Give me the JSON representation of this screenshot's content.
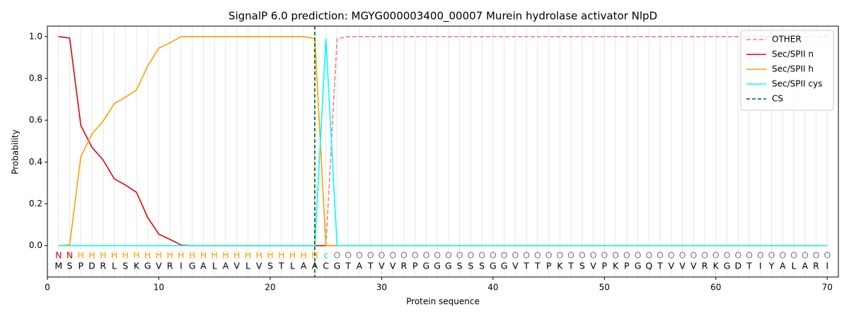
{
  "chart_data": {
    "type": "line",
    "title": "SignalP 6.0 prediction: MGYG000003400_00007 Murein hydrolase activator NlpD",
    "xlabel": "Protein sequence",
    "ylabel": "Probability",
    "x": [
      1,
      2,
      3,
      4,
      5,
      6,
      7,
      8,
      9,
      10,
      11,
      12,
      13,
      14,
      15,
      16,
      17,
      18,
      19,
      20,
      21,
      22,
      23,
      24,
      25,
      26,
      27,
      28,
      29,
      30,
      31,
      32,
      33,
      34,
      35,
      36,
      37,
      38,
      39,
      40,
      41,
      42,
      43,
      44,
      45,
      46,
      47,
      48,
      49,
      50,
      51,
      52,
      53,
      54,
      55,
      56,
      57,
      58,
      59,
      60,
      61,
      62,
      63,
      64,
      65,
      66,
      67,
      68,
      69,
      70
    ],
    "sequence": [
      "M",
      "S",
      "P",
      "D",
      "R",
      "L",
      "S",
      "K",
      "G",
      "V",
      "R",
      "I",
      "G",
      "A",
      "L",
      "A",
      "V",
      "L",
      "V",
      "S",
      "T",
      "L",
      "A",
      "A",
      "C",
      "G",
      "T",
      "A",
      "T",
      "V",
      "V",
      "R",
      "P",
      "G",
      "G",
      "G",
      "S",
      "S",
      "S",
      "G",
      "G",
      "V",
      "T",
      "T",
      "P",
      "K",
      "T",
      "S",
      "V",
      "P",
      "K",
      "P",
      "G",
      "Q",
      "T",
      "V",
      "V",
      "V",
      "R",
      "K",
      "G",
      "D",
      "T",
      "I",
      "Y",
      "A",
      "L",
      "A",
      "R",
      "I"
    ],
    "residue_labels": [
      "N",
      "N",
      "H",
      "H",
      "H",
      "H",
      "H",
      "H",
      "H",
      "H",
      "H",
      "H",
      "H",
      "H",
      "H",
      "H",
      "H",
      "H",
      "H",
      "H",
      "H",
      "H",
      "H",
      "H",
      "c",
      "O",
      "O",
      "O",
      "O",
      "O",
      "O",
      "O",
      "O",
      "O",
      "O",
      "O",
      "O",
      "O",
      "O",
      "O",
      "O",
      "O",
      "O",
      "O",
      "O",
      "O",
      "O",
      "O",
      "O",
      "O",
      "O",
      "O",
      "O",
      "O",
      "O",
      "O",
      "O",
      "O",
      "O",
      "O",
      "O",
      "O",
      "O",
      "O",
      "O",
      "O",
      "O",
      "O",
      "O",
      "O"
    ],
    "label_colors": {
      "N": "#e8000b",
      "H": "#ff9f00",
      "c": "#00e5e5",
      "O": "#808080"
    },
    "series": [
      {
        "name": "OTHER",
        "color": "#f08080",
        "dash": true,
        "values": [
          0,
          0,
          0,
          0,
          0,
          0,
          0,
          0,
          0,
          0,
          0,
          0,
          0,
          0,
          0,
          0,
          0,
          0,
          0,
          0,
          0,
          0,
          0,
          0,
          0,
          0.99,
          1,
          1,
          1,
          1,
          1,
          1,
          1,
          1,
          1,
          1,
          1,
          1,
          1,
          1,
          1,
          1,
          1,
          1,
          1,
          1,
          1,
          1,
          1,
          1,
          1,
          1,
          1,
          1,
          1,
          1,
          1,
          1,
          1,
          1,
          1,
          1,
          1,
          1,
          1,
          1,
          1,
          1,
          1,
          1
        ]
      },
      {
        "name": "Sec/SPII n",
        "color": "#e8000b",
        "dash": false,
        "values": [
          1.0,
          0.993,
          0.575,
          0.47,
          0.41,
          0.32,
          0.29,
          0.255,
          0.135,
          0.055,
          0.03,
          0.003,
          0,
          0,
          0,
          0,
          0,
          0,
          0,
          0,
          0,
          0,
          0,
          0,
          0,
          0,
          0,
          0,
          0,
          0,
          0,
          0,
          0,
          0,
          0,
          0,
          0,
          0,
          0,
          0,
          0,
          0,
          0,
          0,
          0,
          0,
          0,
          0,
          0,
          0,
          0,
          0,
          0,
          0,
          0,
          0,
          0,
          0,
          0,
          0,
          0,
          0,
          0,
          0,
          0,
          0,
          0,
          0,
          0,
          0
        ]
      },
      {
        "name": "Sec/SPII h",
        "color": "#ff9f00",
        "dash": false,
        "values": [
          0,
          0.005,
          0.425,
          0.535,
          0.595,
          0.68,
          0.71,
          0.745,
          0.86,
          0.945,
          0.97,
          1.0,
          1.0,
          1.0,
          1.0,
          1.0,
          1.0,
          1.0,
          1.0,
          1.0,
          1.0,
          1.0,
          1.0,
          0.99,
          0,
          0,
          0,
          0,
          0,
          0,
          0,
          0,
          0,
          0,
          0,
          0,
          0,
          0,
          0,
          0,
          0,
          0,
          0,
          0,
          0,
          0,
          0,
          0,
          0,
          0,
          0,
          0,
          0,
          0,
          0,
          0,
          0,
          0,
          0,
          0,
          0,
          0,
          0,
          0,
          0,
          0,
          0,
          0,
          0,
          0
        ]
      },
      {
        "name": "Sec/SPII cys",
        "color": "#00ffff",
        "dash": false,
        "values": [
          0,
          0,
          0,
          0,
          0,
          0,
          0,
          0,
          0,
          0,
          0,
          0,
          0,
          0,
          0,
          0,
          0,
          0,
          0,
          0,
          0,
          0,
          0,
          0,
          0.99,
          0,
          0,
          0,
          0,
          0,
          0,
          0,
          0,
          0,
          0,
          0,
          0,
          0,
          0,
          0,
          0,
          0,
          0,
          0,
          0,
          0,
          0,
          0,
          0,
          0,
          0,
          0,
          0,
          0,
          0,
          0,
          0,
          0,
          0,
          0,
          0,
          0,
          0,
          0,
          0,
          0,
          0,
          0,
          0,
          0
        ]
      }
    ],
    "cs": {
      "name": "CS",
      "color": "#006400",
      "x": 24
    },
    "xlim": [
      0,
      71
    ],
    "ylim": [
      -0.15,
      1.05
    ],
    "xticks": [
      0,
      10,
      20,
      30,
      40,
      50,
      60,
      70
    ],
    "yticks": [
      {
        "value": 0,
        "label": "0.0"
      },
      {
        "value": 0.2,
        "label": "0.2"
      },
      {
        "value": 0.4,
        "label": "0.4"
      },
      {
        "value": 0.6,
        "label": "0.6"
      },
      {
        "value": 0.8,
        "label": "0.8"
      },
      {
        "value": 1.0,
        "label": "1.0"
      }
    ],
    "grid": true,
    "legend": "upper right"
  }
}
